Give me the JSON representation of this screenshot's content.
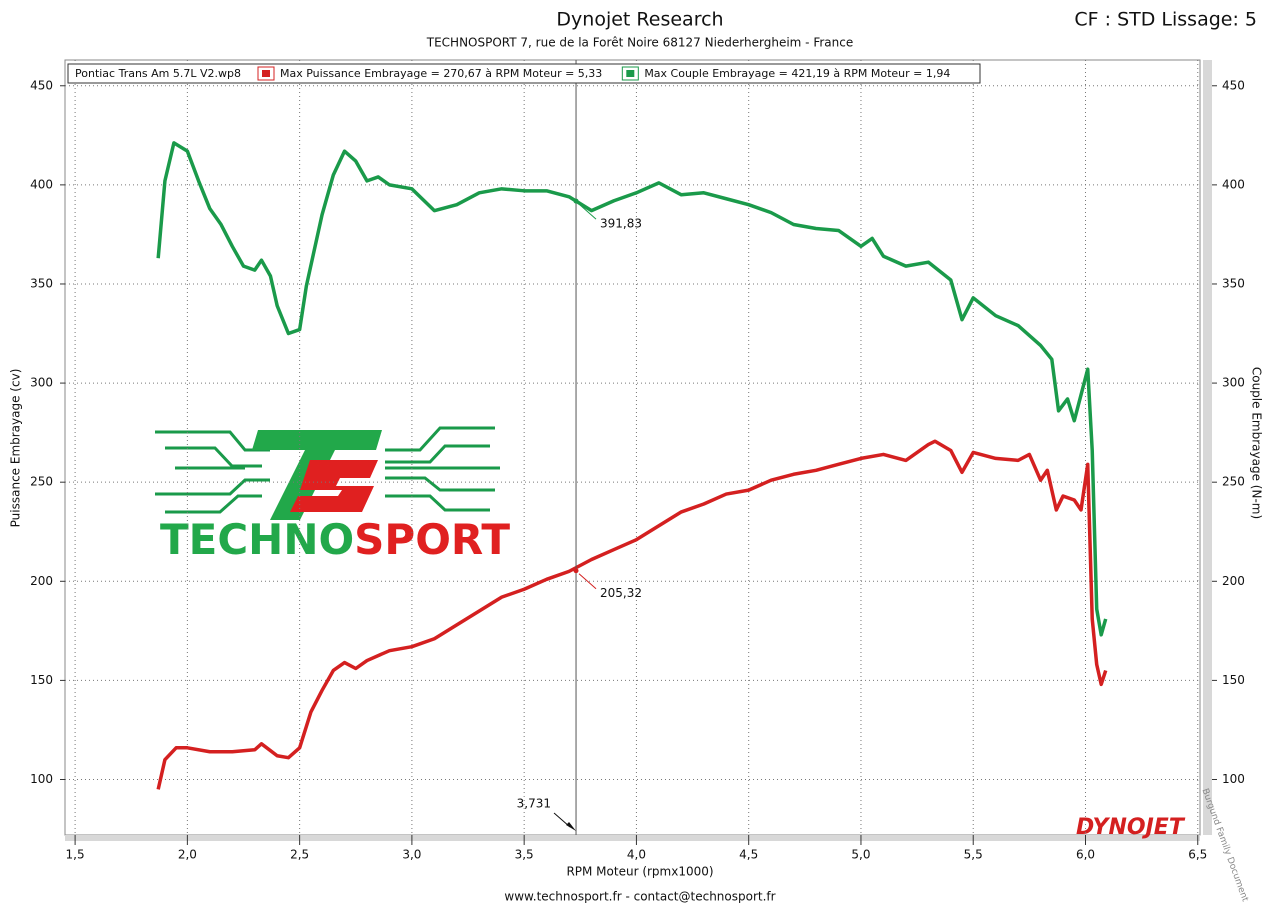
{
  "chart_data": {
    "type": "line",
    "title": "Dynojet Research",
    "subtitle": "TECHNOSPORT 7, rue de la Forêt Noire 68127 Niederhergheim - France",
    "settings_label": "CF : STD Lissage: 5",
    "run_name": "Pontiac Trans Am 5.7L V2.wp8",
    "xlabel": "RPM Moteur (rpmx1000)",
    "ylabel": "Puissance Embrayage (cv)",
    "y2label": "Couple Embrayage (N-m)",
    "footer": "www.technosport.fr - contact@technosport.fr",
    "logo_text_1": "TECHNO",
    "logo_text_2": "SPORT",
    "brand": "DYNOJET",
    "watermark": "Burgund Family Document",
    "xlim": [
      1.455,
      6.51
    ],
    "ylim": [
      72,
      463
    ],
    "y2lim": [
      72,
      463
    ],
    "grid": true,
    "xticks": [
      {
        "value": 1.5,
        "label": "1,5"
      },
      {
        "value": 2.0,
        "label": "2,0"
      },
      {
        "value": 2.5,
        "label": "2,5"
      },
      {
        "value": 3.0,
        "label": "3,0"
      },
      {
        "value": 3.5,
        "label": "3,5"
      },
      {
        "value": 4.0,
        "label": "4,0"
      },
      {
        "value": 4.5,
        "label": "4,5"
      },
      {
        "value": 5.0,
        "label": "5,0"
      },
      {
        "value": 5.5,
        "label": "5,5"
      },
      {
        "value": 6.0,
        "label": "6,0"
      },
      {
        "value": 6.5,
        "label": "6,5"
      }
    ],
    "yticks": [
      100,
      150,
      200,
      250,
      300,
      350,
      400,
      450
    ],
    "y2ticks": [
      100,
      150,
      200,
      250,
      300,
      350,
      400,
      450
    ],
    "cursor": {
      "value": 3.731,
      "label": "3,731"
    },
    "cursor_values": [
      {
        "series": 0,
        "value": 205.32,
        "label": "205,32"
      },
      {
        "series": 1,
        "value": 391.83,
        "label": "391,83"
      }
    ],
    "series": [
      {
        "name": "Max Puissance Embrayage = 270,67 à RPM Moteur = 5,33",
        "color": "#d42020",
        "x": [
          1.87,
          1.9,
          1.95,
          2.0,
          2.1,
          2.2,
          2.3,
          2.33,
          2.4,
          2.45,
          2.5,
          2.55,
          2.6,
          2.65,
          2.7,
          2.75,
          2.8,
          2.9,
          3.0,
          3.1,
          3.2,
          3.3,
          3.4,
          3.5,
          3.6,
          3.7,
          3.8,
          3.9,
          4.0,
          4.1,
          4.2,
          4.3,
          4.4,
          4.5,
          4.6,
          4.7,
          4.8,
          4.9,
          5.0,
          5.1,
          5.2,
          5.3,
          5.33,
          5.4,
          5.45,
          5.5,
          5.6,
          5.7,
          5.75,
          5.8,
          5.83,
          5.87,
          5.9,
          5.95,
          5.98,
          6.01,
          6.03,
          6.05,
          6.07,
          6.09
        ],
        "values": [
          95,
          110,
          116,
          116,
          114,
          114,
          115,
          118,
          112,
          111,
          116,
          134,
          145,
          155,
          159,
          156,
          160,
          165,
          167,
          171,
          178,
          185,
          192,
          196,
          201,
          205,
          211,
          216,
          221,
          228,
          235,
          239,
          244,
          246,
          251,
          254,
          256,
          259,
          262,
          264,
          261,
          269,
          270.67,
          266,
          255,
          265,
          262,
          261,
          264,
          251,
          256,
          236,
          243,
          241,
          236,
          259,
          181,
          158,
          148,
          155
        ]
      },
      {
        "name": "Max Couple Embrayage = 421,19 à RPM Moteur = 1,94",
        "color": "#1a9a4a",
        "axis": "y2",
        "x": [
          1.87,
          1.9,
          1.94,
          2.0,
          2.05,
          2.1,
          2.15,
          2.2,
          2.25,
          2.3,
          2.33,
          2.37,
          2.4,
          2.45,
          2.5,
          2.53,
          2.6,
          2.65,
          2.7,
          2.75,
          2.8,
          2.85,
          2.9,
          3.0,
          3.1,
          3.2,
          3.3,
          3.4,
          3.5,
          3.6,
          3.7,
          3.8,
          3.9,
          4.0,
          4.1,
          4.2,
          4.3,
          4.4,
          4.5,
          4.6,
          4.7,
          4.8,
          4.9,
          5.0,
          5.05,
          5.1,
          5.2,
          5.3,
          5.4,
          5.45,
          5.5,
          5.6,
          5.7,
          5.8,
          5.85,
          5.88,
          5.92,
          5.95,
          5.98,
          6.01,
          6.03,
          6.05,
          6.07,
          6.09
        ],
        "values": [
          363,
          402,
          421.19,
          417,
          402,
          388,
          380,
          369,
          359,
          357,
          362,
          354,
          339,
          325,
          327,
          349,
          385,
          405,
          417,
          412,
          402,
          404,
          400,
          398,
          387,
          390,
          396,
          398,
          397,
          397,
          394,
          387,
          392,
          396,
          401,
          395,
          396,
          393,
          390,
          386,
          380,
          378,
          377,
          369,
          373,
          364,
          359,
          361,
          352,
          332,
          343,
          334,
          329,
          319,
          312,
          286,
          292,
          281,
          294,
          307,
          266,
          186,
          173,
          181
        ]
      }
    ]
  }
}
